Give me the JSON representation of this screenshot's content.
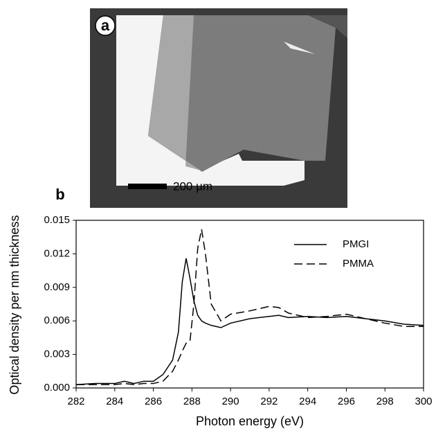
{
  "figure": {
    "panel_a": {
      "label": "a",
      "scale_bar": "200 µm"
    },
    "panel_b": {
      "label": "b"
    }
  },
  "chart_data": {
    "type": "line",
    "x_label": "Photon energy (eV)",
    "y_label": "Optical density per nm thickness",
    "x": [
      282,
      283,
      284,
      284.5,
      285,
      285.5,
      286,
      286.5,
      287,
      287.3,
      287.5,
      287.7,
      287.9,
      288.1,
      288.3,
      288.5,
      288.7,
      289,
      289.5,
      290,
      291,
      292,
      292.5,
      293,
      294,
      295,
      296,
      297,
      298,
      299,
      300
    ],
    "series": [
      {
        "name": "PMGI",
        "color": "#000000",
        "line_style": "solid",
        "values": [
          0.0003,
          0.0004,
          0.0004,
          0.0006,
          0.0004,
          0.0006,
          0.0006,
          0.0012,
          0.0025,
          0.005,
          0.0095,
          0.0116,
          0.0098,
          0.0078,
          0.0065,
          0.006,
          0.0058,
          0.0056,
          0.0054,
          0.0058,
          0.0062,
          0.0064,
          0.0065,
          0.0063,
          0.0064,
          0.0063,
          0.0064,
          0.0062,
          0.006,
          0.0057,
          0.0056
        ]
      },
      {
        "name": "PMMA",
        "color": "#000000",
        "line_style": "dashed",
        "values": [
          0.0003,
          0.0003,
          0.0003,
          0.0004,
          0.0003,
          0.0004,
          0.0004,
          0.0006,
          0.0015,
          0.0025,
          0.0033,
          0.004,
          0.0042,
          0.0075,
          0.0125,
          0.0142,
          0.012,
          0.0075,
          0.006,
          0.0066,
          0.0069,
          0.0073,
          0.0072,
          0.0067,
          0.0063,
          0.0064,
          0.0066,
          0.0062,
          0.0058,
          0.0055,
          0.0055
        ]
      }
    ],
    "xlim": [
      282,
      300
    ],
    "xticks": [
      282,
      284,
      286,
      288,
      290,
      292,
      294,
      296,
      298,
      300
    ],
    "ylim": [
      0,
      0.015
    ],
    "yticks": [
      {
        "value": 0,
        "label": "0.000"
      },
      {
        "value": 0.003,
        "label": "0.003"
      },
      {
        "value": 0.006,
        "label": "0.006"
      },
      {
        "value": 0.009,
        "label": "0.009"
      },
      {
        "value": 0.012,
        "label": "0.012"
      },
      0.015
    ],
    "grid": false,
    "legend": "upper right"
  }
}
